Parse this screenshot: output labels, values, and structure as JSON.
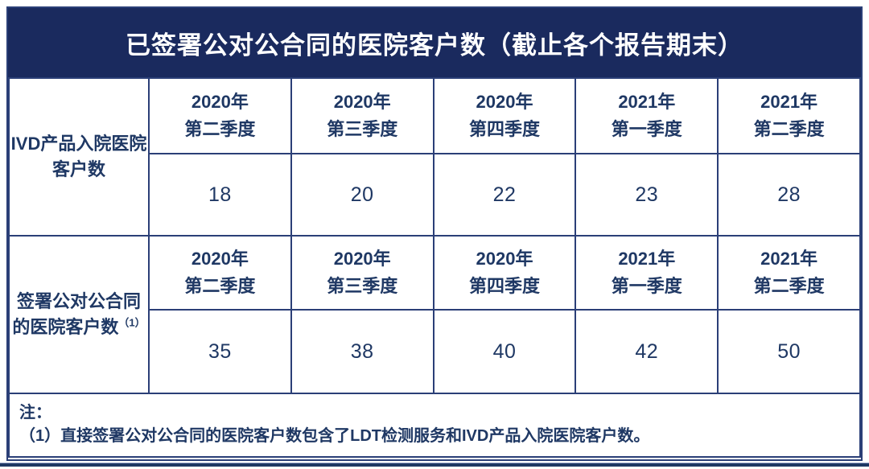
{
  "title": "已签署公对公合同的医院客户数（截止各个报告期末）",
  "colors": {
    "title_bar_bg": "#1a2a5e",
    "title_text": "#ffffff",
    "cell_text": "#1f3864",
    "border": "#2b3f77",
    "cell_bg": "#ffffff",
    "bottom_rule": "#1f3864"
  },
  "table": {
    "row_groups": [
      {
        "label_line1": "IVD产品入院医院",
        "label_line2": "客户数",
        "label_sup": "",
        "quarters": [
          {
            "year": "2020年",
            "q": "第二季度"
          },
          {
            "year": "2020年",
            "q": "第三季度"
          },
          {
            "year": "2020年",
            "q": "第四季度"
          },
          {
            "year": "2021年",
            "q": "第一季度"
          },
          {
            "year": "2021年",
            "q": "第二季度"
          }
        ],
        "values": [
          "18",
          "20",
          "22",
          "23",
          "28"
        ]
      },
      {
        "label_line1": "签署公对公合同",
        "label_line2": "的医院客户数",
        "label_sup": "（1）",
        "quarters": [
          {
            "year": "2020年",
            "q": "第二季度"
          },
          {
            "year": "2020年",
            "q": "第三季度"
          },
          {
            "year": "2020年",
            "q": "第四季度"
          },
          {
            "year": "2021年",
            "q": "第一季度"
          },
          {
            "year": "2021年",
            "q": "第二季度"
          }
        ],
        "values": [
          "35",
          "38",
          "40",
          "42",
          "50"
        ]
      }
    ]
  },
  "note": {
    "heading": "注：",
    "line": "（1）直接签署公对公合同的医院客户数包含了LDT检测服务和IVD产品入院医院客户数。"
  },
  "chart_data": {
    "type": "table",
    "title": "已签署公对公合同的医院客户数（截止各个报告期末）",
    "categories": [
      "2020年第二季度",
      "2020年第三季度",
      "2020年第四季度",
      "2021年第一季度",
      "2021年第二季度"
    ],
    "series": [
      {
        "name": "IVD产品入院医院客户数",
        "values": [
          18,
          20,
          22,
          23,
          28
        ]
      },
      {
        "name": "签署公对公合同的医院客户数（1）",
        "values": [
          35,
          38,
          40,
          42,
          50
        ]
      }
    ],
    "footnote": "（1）直接签署公对公合同的医院客户数包含了LDT检测服务和IVD产品入院医院客户数。"
  }
}
